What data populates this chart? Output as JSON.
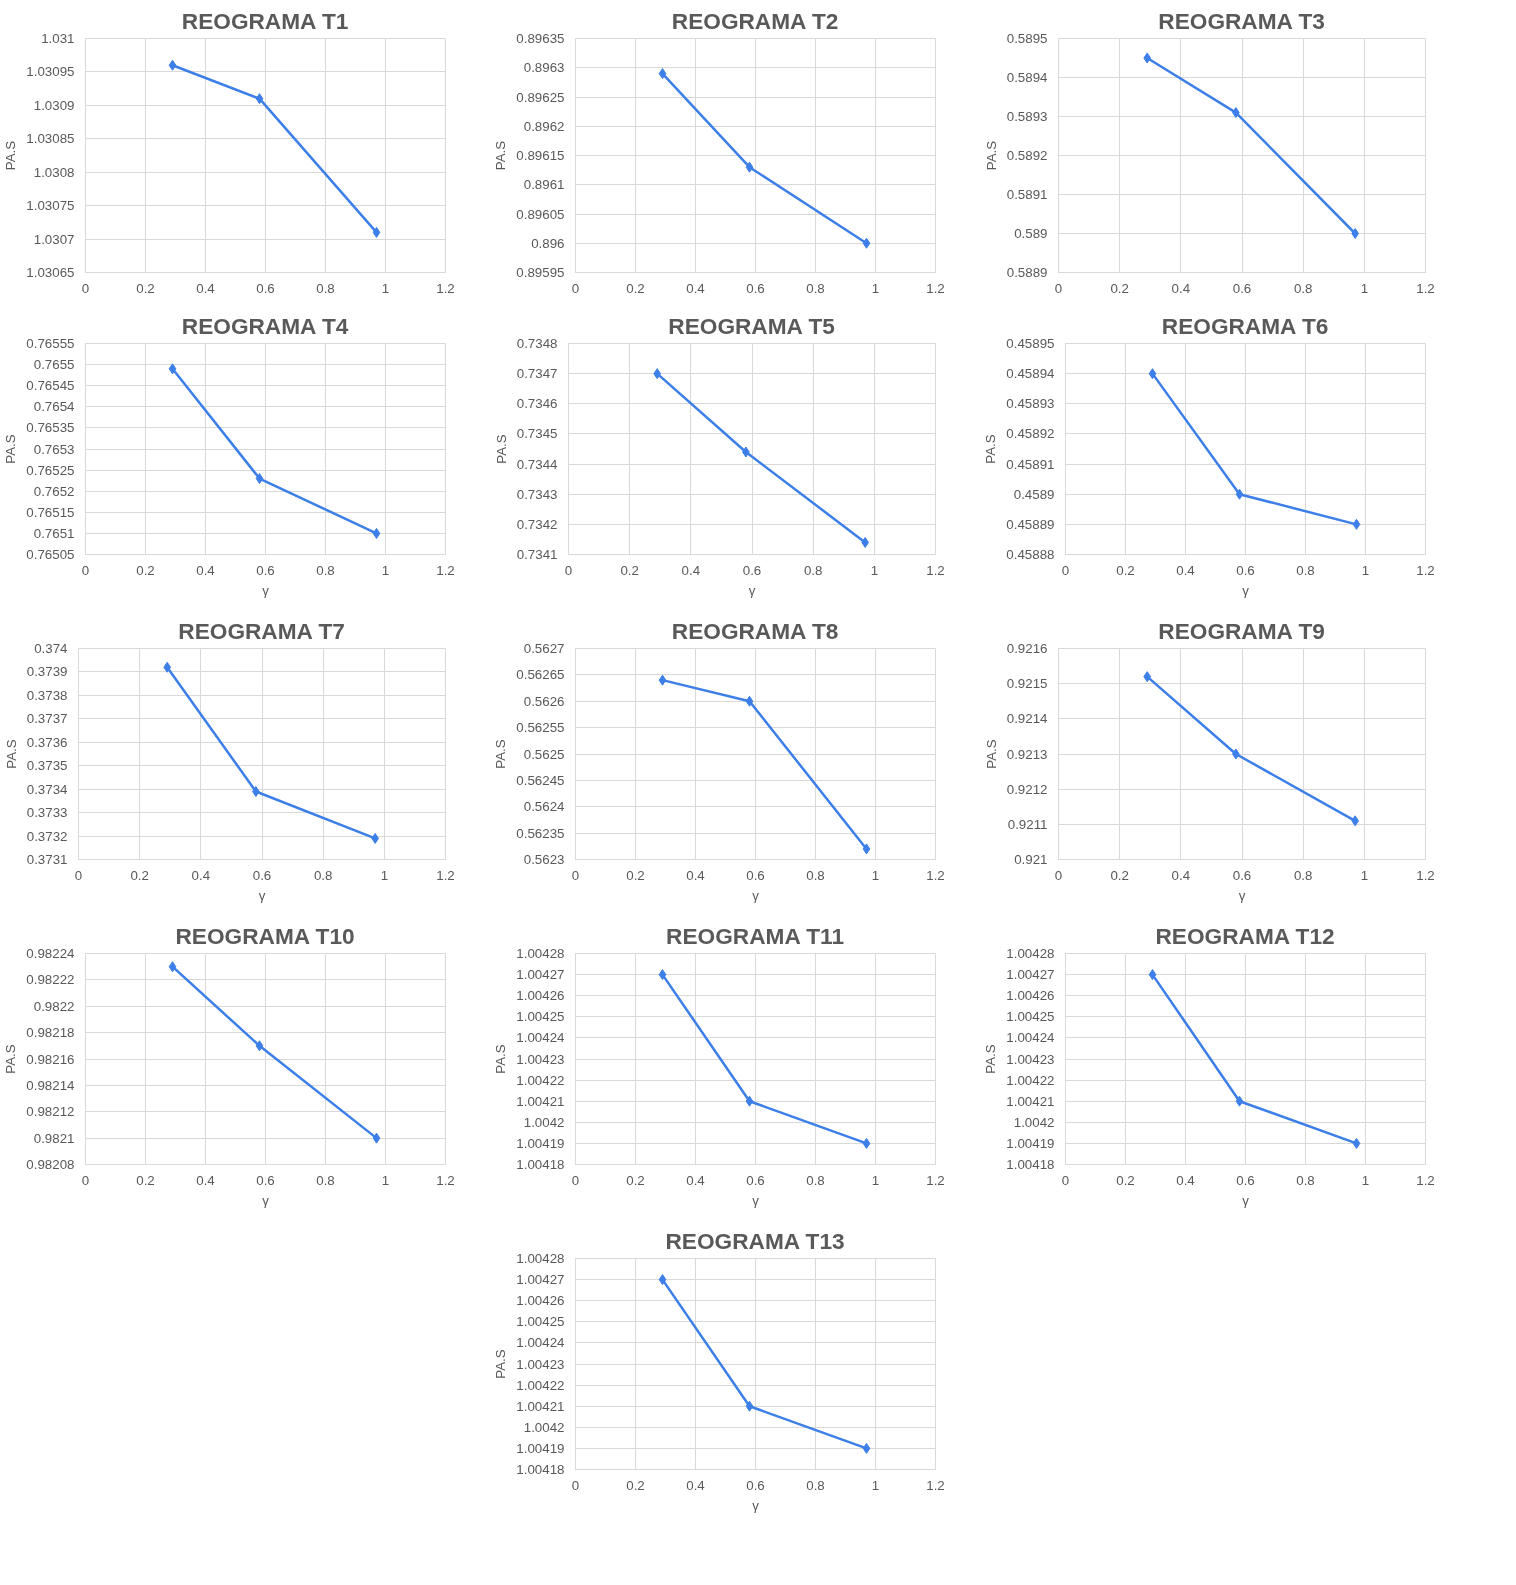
{
  "chart_data": [
    {
      "type": "line",
      "title": "REOGRAMA T1",
      "ylabel": "PA.S",
      "x": [
        0.29,
        0.58,
        0.97
      ],
      "values": [
        1.03096,
        1.03091,
        1.03071
      ],
      "color": "#3d7fe8",
      "marker": "diamond",
      "grid": true,
      "xlim": [
        0,
        1.2
      ],
      "xticks": [
        0,
        0.2,
        0.4,
        0.6,
        0.8,
        1,
        1.2
      ],
      "ylim": [
        1.03065,
        1.031
      ],
      "yticks": [
        1.03065,
        1.0307,
        1.03075,
        1.0308,
        1.03085,
        1.0309,
        1.03095,
        1.031
      ]
    },
    {
      "type": "line",
      "title": "REOGRAMA T2",
      "ylabel": "PA.S",
      "x": [
        0.29,
        0.58,
        0.97
      ],
      "values": [
        0.89629,
        0.89613,
        0.896
      ],
      "color": "#3d7fe8",
      "marker": "diamond",
      "grid": true,
      "xlim": [
        0,
        1.2
      ],
      "xticks": [
        0,
        0.2,
        0.4,
        0.6,
        0.8,
        1,
        1.2
      ],
      "ylim": [
        0.89595,
        0.89635
      ],
      "yticks": [
        0.89595,
        0.896,
        0.89605,
        0.8961,
        0.89615,
        0.8962,
        0.89625,
        0.8963,
        0.89635
      ]
    },
    {
      "type": "line",
      "title": "REOGRAMA T3",
      "ylabel": "PA.S",
      "x": [
        0.29,
        0.58,
        0.97
      ],
      "values": [
        0.58945,
        0.58931,
        0.589
      ],
      "color": "#3d7fe8",
      "marker": "diamond",
      "grid": true,
      "xlim": [
        0,
        1.2
      ],
      "xticks": [
        0,
        0.2,
        0.4,
        0.6,
        0.8,
        1,
        1.2
      ],
      "ylim": [
        0.5889,
        0.5895
      ],
      "yticks": [
        0.5889,
        0.589,
        0.5891,
        0.5892,
        0.5893,
        0.5894,
        0.5895
      ]
    },
    {
      "type": "line",
      "title": "REOGRAMA T4",
      "xlabel": "γ",
      "ylabel": "PA.S",
      "x": [
        0.29,
        0.58,
        0.97
      ],
      "values": [
        0.76549,
        0.76523,
        0.7651
      ],
      "color": "#3d7fe8",
      "marker": "diamond",
      "grid": true,
      "xlim": [
        0,
        1.2
      ],
      "xticks": [
        0,
        0.2,
        0.4,
        0.6,
        0.8,
        1,
        1.2
      ],
      "ylim": [
        0.76505,
        0.76555
      ],
      "yticks": [
        0.76505,
        0.7651,
        0.76515,
        0.7652,
        0.76525,
        0.7653,
        0.76535,
        0.7654,
        0.76545,
        0.7655,
        0.76555
      ]
    },
    {
      "type": "line",
      "title": "REOGRAMA T5",
      "xlabel": "γ",
      "ylabel": "PA.S",
      "x": [
        0.29,
        0.58,
        0.97
      ],
      "values": [
        0.7347,
        0.73444,
        0.73414
      ],
      "color": "#3d7fe8",
      "marker": "diamond",
      "grid": true,
      "xlim": [
        0,
        1.2
      ],
      "xticks": [
        0,
        0.2,
        0.4,
        0.6,
        0.8,
        1,
        1.2
      ],
      "ylim": [
        0.7341,
        0.7348
      ],
      "yticks": [
        0.7341,
        0.7342,
        0.7343,
        0.7344,
        0.7345,
        0.7346,
        0.7347,
        0.7348
      ]
    },
    {
      "type": "line",
      "title": "REOGRAMA T6",
      "xlabel": "γ",
      "ylabel": "PA.S",
      "x": [
        0.29,
        0.58,
        0.97
      ],
      "values": [
        0.45894,
        0.4589,
        0.45889
      ],
      "color": "#3d7fe8",
      "marker": "diamond",
      "grid": true,
      "xlim": [
        0,
        1.2
      ],
      "xticks": [
        0,
        0.2,
        0.4,
        0.6,
        0.8,
        1,
        1.2
      ],
      "ylim": [
        0.45888,
        0.45895
      ],
      "yticks": [
        0.45888,
        0.45889,
        0.4589,
        0.45891,
        0.45892,
        0.45893,
        0.45894,
        0.45895
      ]
    },
    {
      "type": "line",
      "title": "REOGRAMA T7",
      "xlabel": "γ",
      "ylabel": "PA.S",
      "x": [
        0.29,
        0.58,
        0.97
      ],
      "values": [
        0.37392,
        0.37339,
        0.37319
      ],
      "color": "#3d7fe8",
      "marker": "diamond",
      "grid": true,
      "xlim": [
        0,
        1.2
      ],
      "xticks": [
        0,
        0.2,
        0.4,
        0.6,
        0.8,
        1,
        1.2
      ],
      "ylim": [
        0.3731,
        0.374
      ],
      "yticks": [
        0.3731,
        0.3732,
        0.3733,
        0.3734,
        0.3735,
        0.3736,
        0.3737,
        0.3738,
        0.3739,
        0.374
      ]
    },
    {
      "type": "line",
      "title": "REOGRAMA T8",
      "xlabel": "γ",
      "ylabel": "PA.S",
      "x": [
        0.29,
        0.58,
        0.97
      ],
      "values": [
        0.56264,
        0.5626,
        0.56232
      ],
      "color": "#3d7fe8",
      "marker": "diamond",
      "grid": true,
      "xlim": [
        0,
        1.2
      ],
      "xticks": [
        0,
        0.2,
        0.4,
        0.6,
        0.8,
        1,
        1.2
      ],
      "ylim": [
        0.5623,
        0.5627
      ],
      "yticks": [
        0.5623,
        0.56235,
        0.5624,
        0.56245,
        0.5625,
        0.56255,
        0.5626,
        0.56265,
        0.5627
      ]
    },
    {
      "type": "line",
      "title": "REOGRAMA T9",
      "xlabel": "γ",
      "ylabel": "PA.S",
      "x": [
        0.29,
        0.58,
        0.97
      ],
      "values": [
        0.92152,
        0.9213,
        0.92111
      ],
      "color": "#3d7fe8",
      "marker": "diamond",
      "grid": true,
      "xlim": [
        0,
        1.2
      ],
      "xticks": [
        0,
        0.2,
        0.4,
        0.6,
        0.8,
        1,
        1.2
      ],
      "ylim": [
        0.921,
        0.9216
      ],
      "yticks": [
        0.921,
        0.9211,
        0.9212,
        0.9213,
        0.9214,
        0.9215,
        0.9216
      ]
    },
    {
      "type": "line",
      "title": "REOGRAMA T10",
      "xlabel": "γ",
      "ylabel": "PA.S",
      "x": [
        0.29,
        0.58,
        0.97
      ],
      "values": [
        0.98223,
        0.98217,
        0.9821
      ],
      "color": "#3d7fe8",
      "marker": "diamond",
      "grid": true,
      "xlim": [
        0,
        1.2
      ],
      "xticks": [
        0,
        0.2,
        0.4,
        0.6,
        0.8,
        1,
        1.2
      ],
      "ylim": [
        0.98208,
        0.98224
      ],
      "yticks": [
        0.98208,
        0.9821,
        0.98212,
        0.98214,
        0.98216,
        0.98218,
        0.9822,
        0.98222,
        0.98224
      ]
    },
    {
      "type": "line",
      "title": "REOGRAMA T11",
      "xlabel": "γ",
      "ylabel": "PA.S",
      "x": [
        0.29,
        0.58,
        0.97
      ],
      "values": [
        1.00427,
        1.00421,
        1.00419
      ],
      "color": "#3d7fe8",
      "marker": "diamond",
      "grid": true,
      "xlim": [
        0,
        1.2
      ],
      "xticks": [
        0,
        0.2,
        0.4,
        0.6,
        0.8,
        1,
        1.2
      ],
      "ylim": [
        1.00418,
        1.00428
      ],
      "yticks": [
        1.00418,
        1.00419,
        1.0042,
        1.00421,
        1.00422,
        1.00423,
        1.00424,
        1.00425,
        1.00426,
        1.00427,
        1.00428
      ]
    },
    {
      "type": "line",
      "title": "REOGRAMA T12",
      "xlabel": "γ",
      "ylabel": "PA.S",
      "x": [
        0.29,
        0.58,
        0.97
      ],
      "values": [
        1.00427,
        1.00421,
        1.00419
      ],
      "color": "#3d7fe8",
      "marker": "diamond",
      "grid": true,
      "xlim": [
        0,
        1.2
      ],
      "xticks": [
        0,
        0.2,
        0.4,
        0.6,
        0.8,
        1,
        1.2
      ],
      "ylim": [
        1.00418,
        1.00428
      ],
      "yticks": [
        1.00418,
        1.00419,
        1.0042,
        1.00421,
        1.00422,
        1.00423,
        1.00424,
        1.00425,
        1.00426,
        1.00427,
        1.00428
      ]
    },
    {
      "type": "line",
      "title": "REOGRAMA T13",
      "xlabel": "γ",
      "ylabel": "PA.S",
      "x": [
        0.29,
        0.58,
        0.97
      ],
      "values": [
        1.00427,
        1.00421,
        1.00419
      ],
      "color": "#3d7fe8",
      "marker": "diamond",
      "grid": true,
      "xlim": [
        0,
        1.2
      ],
      "xticks": [
        0,
        0.2,
        0.4,
        0.6,
        0.8,
        1,
        1.2
      ],
      "ylim": [
        1.00418,
        1.00428
      ],
      "yticks": [
        1.00418,
        1.00419,
        1.0042,
        1.00421,
        1.00422,
        1.00423,
        1.00424,
        1.00425,
        1.00426,
        1.00427,
        1.00428
      ]
    }
  ]
}
